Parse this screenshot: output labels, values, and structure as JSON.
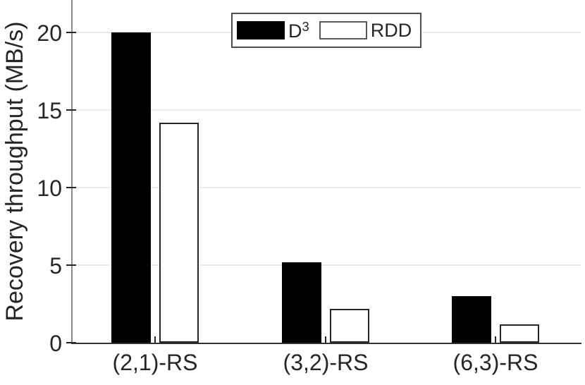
{
  "figure": {
    "background": "#ffffff",
    "text_color": "#262626"
  },
  "chart_data": {
    "type": "bar",
    "title": "",
    "xlabel": "",
    "ylabel": "Recovery throughput (MB/s)",
    "categories": [
      "(2,1)-RS",
      "(3,2)-RS",
      "(6,3)-RS"
    ],
    "series": [
      {
        "name": "D3",
        "label": "D",
        "label_sup": "3",
        "fill": "#000000",
        "edge": "#000000",
        "values": [
          20.0,
          5.2,
          3.0
        ]
      },
      {
        "name": "RDD",
        "label": "RDD",
        "label_sup": "",
        "fill": "#ffffff",
        "edge": "#262626",
        "values": [
          14.2,
          2.2,
          1.2
        ]
      }
    ],
    "yticks": [
      0,
      5,
      10,
      15,
      20
    ],
    "ylim": [
      0,
      22
    ],
    "grid": "horizontal-y",
    "legend_position": "top-center-inside",
    "colors": {
      "grid": "#ebebeb",
      "axis_left": "#8c8c8c",
      "axis_bottom": "#333333",
      "tick": "#262626",
      "legend_border": "#4d4d4d",
      "rdd_legend_swatch_border": "#595959"
    }
  }
}
